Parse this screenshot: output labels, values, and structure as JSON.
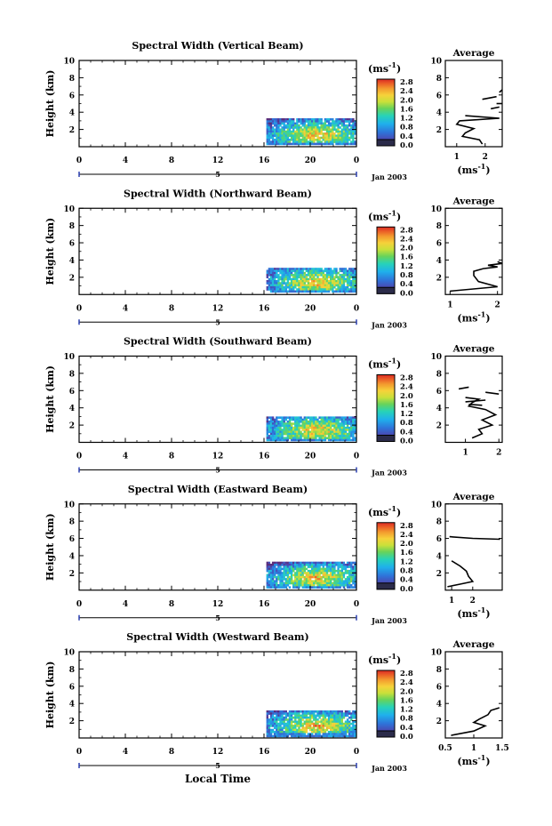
{
  "figure": {
    "bottom_xlabel": "Local Time"
  },
  "chart_data": [
    {
      "type": "heatmap",
      "title": "Spectral Width (Vertical Beam)",
      "ylabel": "Height (km)",
      "xlim": [
        0,
        24
      ],
      "ylim": [
        0,
        10
      ],
      "xticks": [
        "0",
        "4",
        "8",
        "12",
        "16",
        "20",
        "0"
      ],
      "yticks": [
        "2",
        "4",
        "6",
        "8",
        "10"
      ],
      "date_label": "Jan 2003",
      "date_marker": "5",
      "colorbar": {
        "unit_base": "(ms",
        "unit_exp": "-1",
        "unit_close": ")",
        "range": [
          0,
          2.8
        ],
        "ticks": [
          "0.0",
          "0.4",
          "0.8",
          "1.2",
          "1.6",
          "2.0",
          "2.4",
          "2.8"
        ]
      },
      "data_region": {
        "x": [
          16.2,
          23.8
        ],
        "y": [
          0.3,
          3.3
        ]
      },
      "average": {
        "title": "Average",
        "xlabel_base": "(ms",
        "xlabel_exp": "-1",
        "xlabel_close": ")",
        "xlim": [
          0.6,
          2.6
        ],
        "ylim": [
          0,
          10
        ],
        "xticks": [
          "1",
          "2"
        ],
        "yticks": [
          "2",
          "4",
          "6",
          "8",
          "10"
        ],
        "profile": [
          [
            1.9,
            0.3
          ],
          [
            1.8,
            0.8
          ],
          [
            1.2,
            1.2
          ],
          [
            1.3,
            1.6
          ],
          [
            1.6,
            2.1
          ],
          [
            1.0,
            2.6
          ],
          [
            1.1,
            3.0
          ],
          [
            2.5,
            3.3
          ],
          [
            1.3,
            3.6
          ]
        ],
        "segments": [
          [
            [
              2.2,
              4.4
            ],
            [
              2.5,
              4.6
            ]
          ],
          [
            [
              2.4,
              5.0
            ],
            [
              2.6,
              5.0
            ]
          ],
          [
            [
              1.9,
              5.5
            ],
            [
              2.4,
              5.8
            ]
          ],
          [
            [
              2.5,
              6.3
            ],
            [
              2.6,
              6.6
            ]
          ]
        ]
      }
    },
    {
      "type": "heatmap",
      "title": "Spectral Width (Northward Beam)",
      "ylabel": "Height (km)",
      "xlim": [
        0,
        24
      ],
      "ylim": [
        0,
        10
      ],
      "xticks": [
        "0",
        "4",
        "8",
        "12",
        "16",
        "20",
        "0"
      ],
      "yticks": [
        "2",
        "4",
        "6",
        "8",
        "10"
      ],
      "date_label": "Jan 2003",
      "date_marker": "5",
      "colorbar": {
        "unit_base": "(ms",
        "unit_exp": "-1",
        "unit_close": ")",
        "range": [
          0,
          2.8
        ],
        "ticks": [
          "0.0",
          "0.4",
          "0.8",
          "1.2",
          "1.6",
          "2.0",
          "2.4",
          "2.8"
        ]
      },
      "data_region": {
        "x": [
          16.2,
          23.8
        ],
        "y": [
          0.3,
          3.1
        ]
      },
      "average": {
        "title": "Average",
        "xlabel_base": "(ms",
        "xlabel_exp": "-1",
        "xlabel_close": ")",
        "xlim": [
          0.9,
          2.1
        ],
        "ylim": [
          0,
          10
        ],
        "xticks": [
          "1",
          "2"
        ],
        "yticks": [
          "2",
          "4",
          "6",
          "8",
          "10"
        ],
        "profile": [
          [
            1.0,
            0.4
          ],
          [
            2.0,
            0.9
          ],
          [
            1.6,
            1.5
          ],
          [
            1.5,
            2.2
          ],
          [
            1.5,
            2.7
          ],
          [
            1.7,
            3.0
          ],
          [
            2.0,
            3.2
          ],
          [
            1.8,
            3.4
          ],
          [
            2.1,
            3.6
          ],
          [
            2.0,
            3.8
          ]
        ],
        "segments": []
      }
    },
    {
      "type": "heatmap",
      "title": "Spectral Width (Southward Beam)",
      "ylabel": "Height (km)",
      "xlim": [
        0,
        24
      ],
      "ylim": [
        0,
        10
      ],
      "xticks": [
        "0",
        "4",
        "8",
        "12",
        "16",
        "20",
        "0"
      ],
      "yticks": [
        "2",
        "4",
        "6",
        "8",
        "10"
      ],
      "date_label": "Jan 2003",
      "date_marker": "5",
      "colorbar": {
        "unit_base": "(ms",
        "unit_exp": "-1",
        "unit_close": ")",
        "range": [
          0,
          2.8
        ],
        "ticks": [
          "0.0",
          "0.4",
          "0.8",
          "1.2",
          "1.6",
          "2.0",
          "2.4",
          "2.8"
        ]
      },
      "data_region": {
        "x": [
          16.2,
          23.8
        ],
        "y": [
          0.3,
          3.0
        ]
      },
      "average": {
        "title": "Average",
        "xlabel_base": "",
        "xlabel_exp": "",
        "xlabel_close": "",
        "xlim": [
          0.4,
          2.1
        ],
        "ylim": [
          0,
          10
        ],
        "xticks": [
          "1",
          "2"
        ],
        "yticks": [
          "2",
          "4",
          "6",
          "8",
          "10"
        ],
        "profile": [
          [
            1.2,
            0.5
          ],
          [
            1.5,
            1.0
          ],
          [
            1.4,
            1.5
          ],
          [
            1.8,
            2.0
          ],
          [
            1.5,
            2.6
          ],
          [
            1.9,
            3.2
          ],
          [
            1.6,
            3.8
          ],
          [
            1.1,
            4.2
          ],
          [
            1.2,
            4.6
          ],
          [
            1.4,
            5.0
          ],
          [
            1.0,
            5.2
          ]
        ],
        "segments": [
          [
            [
              1.0,
              4.7
            ],
            [
              1.6,
              4.9
            ]
          ],
          [
            [
              1.1,
              4.4
            ],
            [
              1.5,
              4.3
            ]
          ],
          [
            [
              0.8,
              6.2
            ],
            [
              1.1,
              6.4
            ]
          ],
          [
            [
              1.6,
              5.8
            ],
            [
              2.0,
              5.6
            ]
          ]
        ]
      }
    },
    {
      "type": "heatmap",
      "title": "Spectral Width (Eastward Beam)",
      "ylabel": "Height (km)",
      "xlim": [
        0,
        24
      ],
      "ylim": [
        0,
        10
      ],
      "xticks": [
        "0",
        "4",
        "8",
        "12",
        "16",
        "20",
        "0"
      ],
      "yticks": [
        "2",
        "4",
        "6",
        "8",
        "10"
      ],
      "date_label": "Jan 2003",
      "date_marker": "5",
      "colorbar": {
        "unit_base": "(ms",
        "unit_exp": "-1",
        "unit_close": ")",
        "range": [
          0,
          2.8
        ],
        "ticks": [
          "0.0",
          "0.4",
          "0.8",
          "1.2",
          "1.6",
          "2.0",
          "2.4",
          "2.8"
        ]
      },
      "data_region": {
        "x": [
          16.2,
          23.8
        ],
        "y": [
          0.3,
          3.3
        ]
      },
      "average": {
        "title": "Average",
        "xlabel_base": "(ms",
        "xlabel_exp": "-1",
        "xlabel_close": ")",
        "xlim": [
          0.7,
          3.4
        ],
        "ylim": [
          0,
          10
        ],
        "xticks": [
          "1",
          "2"
        ],
        "yticks": [
          "2",
          "4",
          "6",
          "8",
          "10"
        ],
        "profile": [
          [
            0.8,
            0.4
          ],
          [
            1.4,
            0.7
          ],
          [
            2.0,
            1.0
          ],
          [
            1.8,
            1.6
          ],
          [
            1.7,
            2.2
          ],
          [
            1.4,
            2.8
          ],
          [
            1.0,
            3.4
          ]
        ],
        "segments": [
          [
            [
              0.9,
              6.2
            ],
            [
              2.0,
              6.0
            ],
            [
              3.3,
              5.9
            ]
          ]
        ]
      }
    },
    {
      "type": "heatmap",
      "title": "Spectral Width (Westward Beam)",
      "ylabel": "Height (km)",
      "xlim": [
        0,
        24
      ],
      "ylim": [
        0,
        10
      ],
      "xticks": [
        "0",
        "4",
        "8",
        "12",
        "16",
        "20",
        "0"
      ],
      "yticks": [
        "2",
        "4",
        "6",
        "8",
        "10"
      ],
      "date_label": "Jan 2003",
      "date_marker": "5",
      "colorbar": {
        "unit_base": "(ms",
        "unit_exp": "-1",
        "unit_close": ")",
        "range": [
          0,
          2.8
        ],
        "ticks": [
          "0.0",
          "0.4",
          "0.8",
          "1.2",
          "1.6",
          "2.0",
          "2.4",
          "2.8"
        ]
      },
      "data_region": {
        "x": [
          16.2,
          23.8
        ],
        "y": [
          0.3,
          3.2
        ]
      },
      "average": {
        "title": "Average",
        "xlabel_base": "(ms",
        "xlabel_exp": "-1",
        "xlabel_close": ")",
        "xlim": [
          0.5,
          1.5
        ],
        "ylim": [
          0,
          10
        ],
        "xticks": [
          "0.5",
          "1",
          "1.5"
        ],
        "yticks": [
          "2",
          "4",
          "6",
          "8",
          "10"
        ],
        "profile": [
          [
            0.6,
            0.3
          ],
          [
            1.0,
            0.8
          ],
          [
            1.2,
            1.4
          ],
          [
            1.0,
            1.8
          ],
          [
            1.1,
            2.2
          ],
          [
            1.25,
            2.7
          ],
          [
            1.3,
            3.2
          ],
          [
            1.45,
            3.5
          ]
        ],
        "segments": []
      }
    }
  ]
}
